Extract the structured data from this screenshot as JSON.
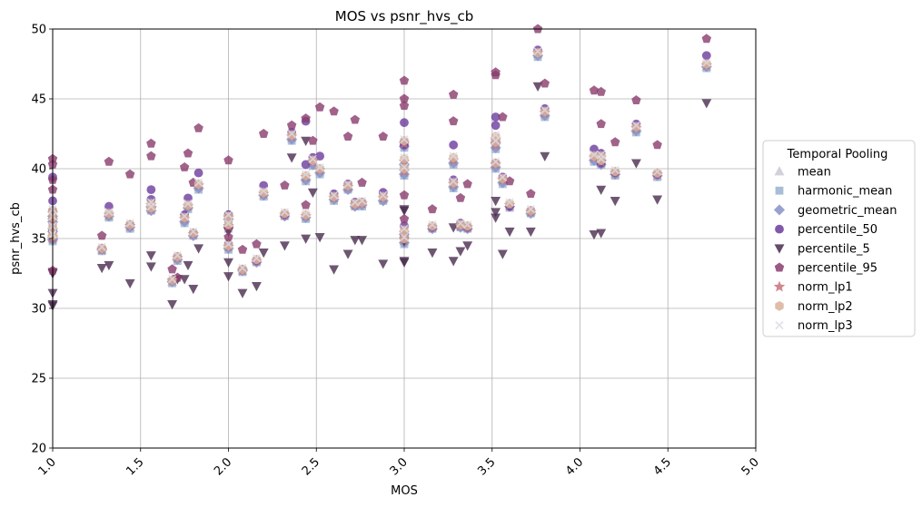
{
  "chart_data": {
    "type": "scatter",
    "title": "MOS vs psnr_hvs_cb",
    "xlabel": "MOS",
    "ylabel": "psnr_hvs_cb",
    "xlim": [
      1.0,
      5.0
    ],
    "ylim": [
      20,
      50
    ],
    "xticks": [
      "1.0",
      "1.5",
      "2.0",
      "2.5",
      "3.0",
      "3.5",
      "4.0",
      "4.5",
      "5.0"
    ],
    "yticks": [
      "20",
      "25",
      "30",
      "35",
      "40",
      "45",
      "50"
    ],
    "grid": true,
    "legend": {
      "title": "Temporal Pooling",
      "placement": "center-right"
    },
    "x": [
      1.0,
      1.0,
      1.0,
      1.0,
      1.0,
      1.28,
      1.32,
      1.44,
      1.56,
      1.56,
      1.68,
      1.71,
      1.75,
      1.77,
      1.8,
      1.83,
      2.0,
      2.0,
      2.0,
      2.08,
      2.16,
      2.2,
      2.32,
      2.36,
      2.44,
      2.44,
      2.48,
      2.52,
      2.6,
      2.68,
      2.72,
      2.76,
      2.88,
      3.0,
      3.0,
      3.0,
      3.0,
      3.0,
      3.16,
      3.28,
      3.28,
      3.32,
      3.36,
      3.52,
      3.52,
      3.52,
      3.56,
      3.6,
      3.72,
      3.76,
      3.8,
      4.08,
      4.12,
      4.12,
      4.2,
      4.32,
      4.44,
      4.72
    ],
    "series": [
      {
        "name": "mean",
        "color": "#c9c9d6",
        "marker": "triangle",
        "y": [
          35.0,
          35.6,
          36.3,
          36.8,
          35.1,
          34.2,
          36.6,
          35.8,
          37.1,
          37.4,
          31.9,
          33.6,
          36.3,
          37.3,
          35.3,
          38.7,
          34.4,
          35.9,
          36.5,
          32.7,
          33.4,
          38.1,
          36.7,
          42.2,
          36.5,
          39.3,
          40.4,
          39.8,
          37.9,
          38.6,
          37.4,
          37.5,
          37.8,
          34.8,
          35.4,
          39.7,
          40.4,
          41.7,
          35.8,
          38.8,
          40.5,
          35.9,
          35.8,
          40.2,
          41.6,
          42.0,
          39.1,
          37.3,
          36.9,
          48.2,
          43.9,
          40.7,
          40.4,
          40.7,
          39.6,
          42.8,
          39.5,
          47.3
        ]
      },
      {
        "name": "harmonic_mean",
        "color": "#9ab2d0",
        "marker": "square",
        "y": [
          34.8,
          35.4,
          36.1,
          36.5,
          34.9,
          34.1,
          36.5,
          35.7,
          37.0,
          37.2,
          31.8,
          33.4,
          36.1,
          37.1,
          35.2,
          38.5,
          34.2,
          35.7,
          36.3,
          32.6,
          33.3,
          38.0,
          36.6,
          42.0,
          36.4,
          39.1,
          40.2,
          39.6,
          37.7,
          38.5,
          37.3,
          37.3,
          37.7,
          34.6,
          35.2,
          39.5,
          40.2,
          41.5,
          35.7,
          38.6,
          40.3,
          35.8,
          35.7,
          40.0,
          41.4,
          41.8,
          38.9,
          37.2,
          36.8,
          48.0,
          43.7,
          40.5,
          40.3,
          40.5,
          39.5,
          42.6,
          39.4,
          47.2
        ]
      },
      {
        "name": "geometric_mean",
        "color": "#8792c8",
        "marker": "diamond",
        "y": [
          34.9,
          35.5,
          36.2,
          36.6,
          35.0,
          34.2,
          36.6,
          35.8,
          37.0,
          37.3,
          31.9,
          33.5,
          36.2,
          37.2,
          35.2,
          38.6,
          34.3,
          35.8,
          36.4,
          32.7,
          33.3,
          38.1,
          36.6,
          42.1,
          36.5,
          39.2,
          40.3,
          39.7,
          37.8,
          38.5,
          37.3,
          37.4,
          37.7,
          34.7,
          35.3,
          39.6,
          40.3,
          41.6,
          35.7,
          38.7,
          40.4,
          35.8,
          35.7,
          40.1,
          41.5,
          41.9,
          39.0,
          37.3,
          36.8,
          48.1,
          43.8,
          40.6,
          40.3,
          40.6,
          39.6,
          42.7,
          39.5,
          47.3
        ]
      },
      {
        "name": "percentile_50",
        "color": "#6c3d9e",
        "marker": "circle",
        "y": [
          37.0,
          37.7,
          36.5,
          39.4,
          35.6,
          34.3,
          37.3,
          36.0,
          38.5,
          37.8,
          32.0,
          33.7,
          36.7,
          37.9,
          35.4,
          39.7,
          34.6,
          36.7,
          36.7,
          32.8,
          33.4,
          38.8,
          36.7,
          42.6,
          40.3,
          43.4,
          40.8,
          40.9,
          38.2,
          38.9,
          37.6,
          37.6,
          38.3,
          35.1,
          35.9,
          41.7,
          41.9,
          43.3,
          35.8,
          39.2,
          41.7,
          36.1,
          35.8,
          40.4,
          43.1,
          43.7,
          39.4,
          37.3,
          37.0,
          48.5,
          44.3,
          41.4,
          41.1,
          40.4,
          39.7,
          43.2,
          39.6,
          48.1
        ]
      },
      {
        "name": "percentile_5",
        "color": "#4a2d4f",
        "marker": "triangle-down",
        "y": [
          30.2,
          31.1,
          32.5,
          32.6,
          30.3,
          32.9,
          33.1,
          31.8,
          33.0,
          33.8,
          30.3,
          32.1,
          32.1,
          33.1,
          31.4,
          34.3,
          32.3,
          33.3,
          35.5,
          31.1,
          31.6,
          34.0,
          34.5,
          40.8,
          35.0,
          42.0,
          38.3,
          35.1,
          32.8,
          33.9,
          34.9,
          34.9,
          33.2,
          33.3,
          34.8,
          37.0,
          37.1,
          33.4,
          34.0,
          35.8,
          33.4,
          34.1,
          34.5,
          36.5,
          36.9,
          37.7,
          33.9,
          35.5,
          35.5,
          45.9,
          40.9,
          35.3,
          35.4,
          38.5,
          37.7,
          40.4,
          37.8,
          44.7
        ]
      },
      {
        "name": "percentile_95",
        "color": "#8a3d6e",
        "marker": "pentagon",
        "y": [
          40.7,
          40.3,
          39.2,
          38.5,
          32.7,
          35.2,
          40.5,
          39.6,
          41.8,
          40.9,
          32.8,
          32.2,
          40.1,
          41.1,
          39.0,
          42.9,
          40.6,
          35.8,
          35.1,
          34.2,
          34.6,
          42.5,
          38.8,
          43.1,
          37.4,
          43.6,
          42.0,
          44.4,
          44.1,
          42.3,
          43.5,
          39.0,
          42.3,
          36.4,
          38.1,
          44.5,
          45.0,
          46.3,
          37.1,
          45.3,
          43.4,
          37.9,
          38.9,
          46.7,
          46.9,
          42.0,
          43.7,
          39.1,
          38.2,
          50.0,
          46.1,
          45.6,
          43.2,
          45.5,
          41.9,
          44.9,
          41.7,
          49.3
        ]
      },
      {
        "name": "norm_lp1",
        "color": "#c9737b",
        "marker": "star",
        "y": [
          35.0,
          35.6,
          36.3,
          36.8,
          35.1,
          34.2,
          36.7,
          35.9,
          37.1,
          37.4,
          32.0,
          33.6,
          36.4,
          37.3,
          35.3,
          38.8,
          34.4,
          35.9,
          36.5,
          32.7,
          33.4,
          38.2,
          36.7,
          42.3,
          36.6,
          39.4,
          40.5,
          39.9,
          37.9,
          38.7,
          37.4,
          37.5,
          37.9,
          34.9,
          35.4,
          39.8,
          40.5,
          41.8,
          35.8,
          38.9,
          40.6,
          35.9,
          35.8,
          40.3,
          41.7,
          42.1,
          39.2,
          37.4,
          36.9,
          48.3,
          44.0,
          40.8,
          40.5,
          40.8,
          39.7,
          42.9,
          39.6,
          47.4
        ]
      },
      {
        "name": "norm_lp2",
        "color": "#d9b39a",
        "marker": "hexagon",
        "y": [
          35.2,
          35.8,
          36.5,
          37.0,
          35.2,
          34.3,
          36.8,
          36.0,
          37.2,
          37.5,
          32.0,
          33.7,
          36.5,
          37.4,
          35.4,
          38.9,
          34.5,
          36.0,
          36.6,
          32.8,
          33.5,
          38.3,
          36.8,
          42.4,
          36.7,
          39.5,
          40.6,
          40.0,
          38.0,
          38.8,
          37.5,
          37.6,
          38.0,
          35.0,
          35.6,
          40.0,
          40.7,
          42.0,
          35.9,
          39.0,
          40.8,
          36.0,
          35.9,
          40.4,
          41.9,
          42.3,
          39.3,
          37.5,
          37.0,
          48.3,
          44.1,
          40.9,
          40.6,
          40.9,
          39.8,
          43.0,
          39.7,
          47.5
        ]
      },
      {
        "name": "norm_lp3",
        "color": "#dcdce6",
        "marker": "x",
        "y": [
          35.3,
          35.9,
          36.6,
          37.1,
          35.3,
          34.4,
          36.9,
          36.1,
          37.3,
          37.6,
          32.1,
          33.8,
          36.6,
          37.5,
          35.5,
          39.0,
          34.6,
          36.1,
          36.7,
          32.9,
          33.6,
          38.4,
          36.9,
          42.5,
          36.8,
          39.6,
          40.7,
          40.1,
          38.1,
          38.9,
          37.6,
          37.7,
          38.1,
          35.1,
          35.7,
          40.1,
          40.8,
          42.1,
          36.0,
          39.1,
          40.9,
          36.1,
          36.0,
          40.5,
          42.0,
          42.4,
          39.4,
          37.6,
          37.1,
          48.4,
          44.2,
          41.0,
          40.7,
          41.0,
          39.9,
          43.1,
          39.8,
          47.6
        ]
      }
    ]
  }
}
